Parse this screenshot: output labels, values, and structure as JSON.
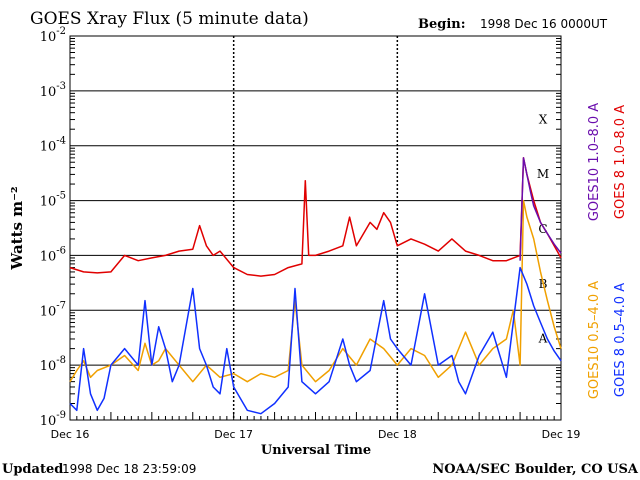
{
  "header": {
    "title": "GOES Xray Flux (5 minute data)",
    "begin_label": "Begin:",
    "begin_value": "1998 Dec 16 0000UT"
  },
  "footer": {
    "updated_label": "Updated",
    "updated_value": "1998 Dec 18 23:59:09",
    "credit": "NOAA/SEC Boulder, CO USA"
  },
  "chart_data": {
    "type": "line",
    "title": "GOES Xray Flux (5 minute data)",
    "xlabel": "Universal Time",
    "ylabel": "Watts m⁻²",
    "yscale": "log",
    "ylim": [
      1e-09,
      0.01
    ],
    "xlim": [
      0,
      72
    ],
    "x_unit": "hours since 1998 Dec 16 00:00 UT",
    "x_ticks": [
      {
        "x": 0,
        "label": "Dec 16"
      },
      {
        "x": 24,
        "label": "Dec 17"
      },
      {
        "x": 48,
        "label": "Dec 18"
      },
      {
        "x": 72,
        "label": "Dec 19"
      }
    ],
    "y_ticks": [
      {
        "exp": -2,
        "base": "10",
        "sup": "-2"
      },
      {
        "exp": -3,
        "base": "10",
        "sup": "-3"
      },
      {
        "exp": -4,
        "base": "10",
        "sup": "-4"
      },
      {
        "exp": -5,
        "base": "10",
        "sup": "-5"
      },
      {
        "exp": -6,
        "base": "10",
        "sup": "-6"
      },
      {
        "exp": -7,
        "base": "10",
        "sup": "-7"
      },
      {
        "exp": -8,
        "base": "10",
        "sup": "-8"
      },
      {
        "exp": -9,
        "base": "10",
        "sup": "-9"
      }
    ],
    "flare_classes": [
      {
        "label": "X",
        "exp": -4
      },
      {
        "label": "M",
        "exp": -5
      },
      {
        "label": "C",
        "exp": -6
      },
      {
        "label": "B",
        "exp": -7
      },
      {
        "label": "A",
        "exp": -8
      }
    ],
    "grid": true,
    "legend_position": "right, vertical",
    "series": [
      {
        "name": "GOES10 1.0–8.0 A",
        "color": "#6a0dad",
        "x": [
          66,
          66.5,
          67,
          67.5,
          68,
          69,
          70,
          71,
          72
        ],
        "y": [
          8e-07,
          6e-05,
          3e-05,
          1.5e-05,
          8e-06,
          4e-06,
          2.5e-06,
          1.6e-06,
          1.1e-06
        ]
      },
      {
        "name": "GOES 8 1.0–8.0 A",
        "color": "#e00000",
        "x": [
          0,
          2,
          4,
          6,
          8,
          10,
          12,
          14,
          16,
          18,
          19,
          20,
          21,
          22,
          24,
          26,
          28,
          30,
          32,
          34,
          34.5,
          35,
          36,
          38,
          40,
          41,
          42,
          44,
          45,
          46,
          47,
          48,
          50,
          52,
          54,
          56,
          58,
          60,
          62,
          64,
          66,
          66.5,
          67,
          68,
          69,
          70,
          71,
          72
        ],
        "y": [
          6e-07,
          5e-07,
          4.8e-07,
          5e-07,
          1e-06,
          8e-07,
          9e-07,
          1e-06,
          1.2e-06,
          1.3e-06,
          3.5e-06,
          1.5e-06,
          1e-06,
          1.2e-06,
          6e-07,
          4.5e-07,
          4.2e-07,
          4.5e-07,
          6e-07,
          7e-07,
          2.3e-05,
          1e-06,
          1e-06,
          1.2e-06,
          1.5e-06,
          5e-06,
          1.5e-06,
          4e-06,
          3e-06,
          6e-06,
          4e-06,
          1.5e-06,
          2e-06,
          1.6e-06,
          1.2e-06,
          2e-06,
          1.2e-06,
          1e-06,
          8e-07,
          8e-07,
          1e-06,
          6e-05,
          3e-05,
          1e-05,
          4e-06,
          2.5e-06,
          1.5e-06,
          9e-07
        ]
      },
      {
        "name": "GOES10 0.5–4.0 A",
        "color": "#f0a000",
        "x": [
          0,
          1,
          2,
          3,
          4,
          6,
          8,
          10,
          11,
          12,
          13,
          14,
          16,
          18,
          20,
          22,
          24,
          26,
          28,
          30,
          32,
          33,
          34,
          36,
          38,
          40,
          42,
          44,
          46,
          48,
          50,
          52,
          54,
          56,
          58,
          60,
          62,
          64,
          65,
          66,
          66.5,
          67,
          68,
          69,
          70,
          71,
          72
        ],
        "y": [
          5e-09,
          8e-09,
          1.2e-08,
          6e-09,
          8e-09,
          1e-08,
          1.5e-08,
          8e-09,
          2.5e-08,
          1e-08,
          1.2e-08,
          2e-08,
          1e-08,
          5e-09,
          1e-08,
          6e-09,
          7e-09,
          5e-09,
          7e-09,
          6e-09,
          8e-09,
          1.5e-07,
          1e-08,
          5e-09,
          8e-09,
          2e-08,
          1e-08,
          3e-08,
          2e-08,
          1e-08,
          2e-08,
          1.5e-08,
          6e-09,
          1e-08,
          4e-08,
          1e-08,
          2e-08,
          3e-08,
          1e-07,
          1e-08,
          1e-05,
          5e-06,
          2e-06,
          5e-07,
          1.5e-07,
          5e-08,
          2e-08
        ]
      },
      {
        "name": "GOES 8 0.5–4.0 A",
        "color": "#1030ff",
        "x": [
          0,
          1,
          2,
          3,
          4,
          5,
          6,
          8,
          10,
          11,
          12,
          13,
          14,
          15,
          16,
          18,
          19,
          20,
          21,
          22,
          23,
          24,
          26,
          28,
          30,
          32,
          33,
          34,
          36,
          38,
          40,
          41,
          42,
          44,
          46,
          47,
          48,
          50,
          52,
          54,
          56,
          57,
          58,
          60,
          62,
          64,
          66,
          67,
          68,
          69,
          70,
          71,
          72
        ],
        "y": [
          2e-09,
          1.5e-09,
          2e-08,
          3e-09,
          1.5e-09,
          2.5e-09,
          1e-08,
          2e-08,
          1e-08,
          1.5e-07,
          1e-08,
          5e-08,
          2e-08,
          5e-09,
          1e-08,
          2.5e-07,
          2e-08,
          1e-08,
          4e-09,
          3e-09,
          2e-08,
          4e-09,
          1.5e-09,
          1.3e-09,
          2e-09,
          4e-09,
          2.5e-07,
          5e-09,
          3e-09,
          5e-09,
          3e-08,
          1e-08,
          5e-09,
          8e-09,
          1.5e-07,
          3e-08,
          2e-08,
          1e-08,
          2e-07,
          1e-08,
          1.5e-08,
          5e-09,
          3e-09,
          1.5e-08,
          4e-08,
          6e-09,
          6e-07,
          3e-07,
          1.2e-07,
          6e-08,
          3e-08,
          1.8e-08,
          1.2e-08
        ]
      }
    ]
  }
}
